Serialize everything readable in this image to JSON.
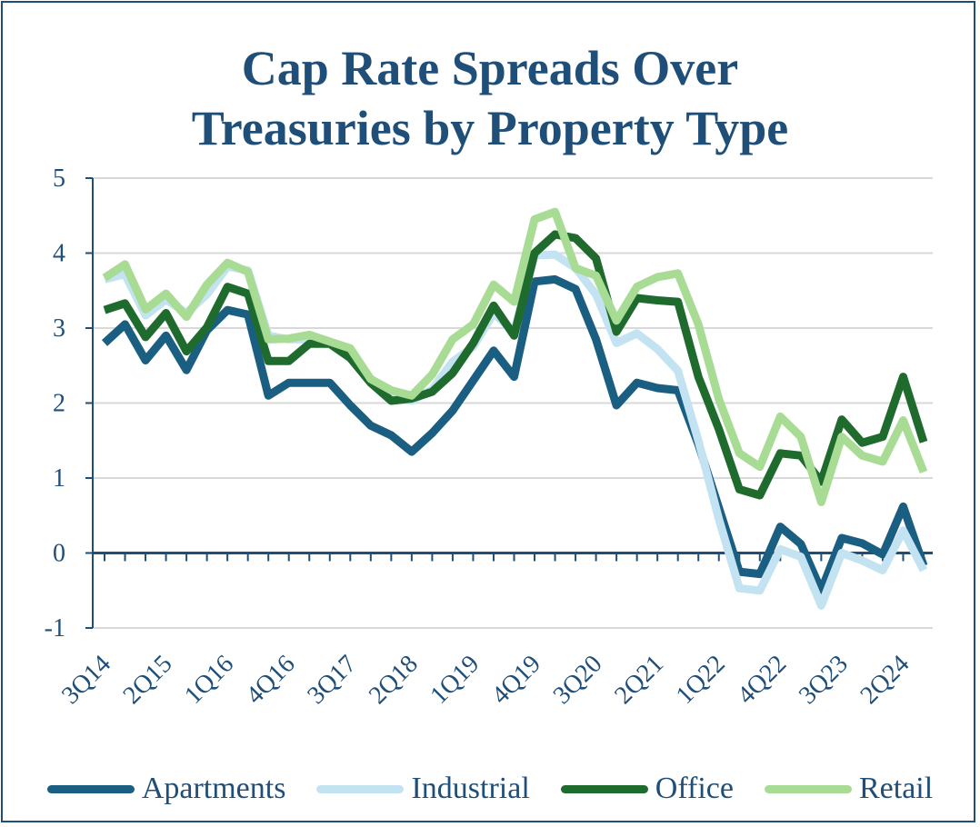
{
  "chart_data": {
    "type": "line",
    "title_lines": [
      "Cap Rate Spreads Over",
      "Treasuries by Property Type"
    ],
    "ylim": [
      -1,
      5
    ],
    "yticks": [
      "-1",
      "0",
      "1",
      "2",
      "3",
      "4",
      "5"
    ],
    "x": [
      "3Q14",
      "4Q14",
      "1Q15",
      "2Q15",
      "3Q15",
      "4Q15",
      "1Q16",
      "2Q16",
      "3Q16",
      "4Q16",
      "1Q17",
      "2Q17",
      "3Q17",
      "4Q17",
      "1Q18",
      "2Q18",
      "3Q18",
      "4Q18",
      "1Q19",
      "2Q19",
      "3Q19",
      "4Q19",
      "1Q20",
      "2Q20",
      "3Q20",
      "4Q20",
      "1Q21",
      "2Q21",
      "3Q21",
      "4Q21",
      "1Q22",
      "2Q22",
      "3Q22",
      "4Q22",
      "1Q23",
      "2Q23",
      "3Q23",
      "4Q23",
      "1Q24",
      "2Q24",
      "3Q24"
    ],
    "xtick_labels": [
      "3Q14",
      "2Q15",
      "1Q16",
      "4Q16",
      "3Q17",
      "2Q18",
      "1Q19",
      "4Q19",
      "3Q20",
      "2Q21",
      "1Q22",
      "4Q22",
      "3Q23",
      "2Q24"
    ],
    "series": [
      {
        "name": "Apartments",
        "color": "#1a5e82",
        "values": [
          2.8,
          3.05,
          2.57,
          2.9,
          2.44,
          2.97,
          3.24,
          3.18,
          2.1,
          2.27,
          2.27,
          2.27,
          1.97,
          1.7,
          1.57,
          1.35,
          1.6,
          1.9,
          2.3,
          2.7,
          2.35,
          3.62,
          3.65,
          3.52,
          2.85,
          1.97,
          2.27,
          2.2,
          2.17,
          1.45,
          0.6,
          -0.25,
          -0.28,
          0.35,
          0.12,
          -0.5,
          0.2,
          0.13,
          -0.02,
          0.62,
          -0.17
        ]
      },
      {
        "name": "Industrial",
        "color": "#c4e3f2",
        "values": [
          3.65,
          3.72,
          3.17,
          3.38,
          3.2,
          3.45,
          3.82,
          3.77,
          2.9,
          2.85,
          2.85,
          2.8,
          2.65,
          2.3,
          2.1,
          2.03,
          2.18,
          2.55,
          2.75,
          3.2,
          2.95,
          3.97,
          3.98,
          3.8,
          3.45,
          2.8,
          2.93,
          2.72,
          2.43,
          1.5,
          0.45,
          -0.47,
          -0.5,
          0.05,
          -0.05,
          -0.7,
          0.0,
          -0.1,
          -0.23,
          0.3,
          -0.23
        ]
      },
      {
        "name": "Office",
        "color": "#1f6b2d",
        "values": [
          3.24,
          3.33,
          2.88,
          3.2,
          2.69,
          3.01,
          3.55,
          3.46,
          2.56,
          2.56,
          2.79,
          2.79,
          2.6,
          2.27,
          2.03,
          2.06,
          2.15,
          2.4,
          2.8,
          3.3,
          2.9,
          4.0,
          4.25,
          4.2,
          3.93,
          2.95,
          3.4,
          3.37,
          3.35,
          2.35,
          1.65,
          0.85,
          0.77,
          1.33,
          1.3,
          0.95,
          1.78,
          1.47,
          1.55,
          2.35,
          1.48
        ]
      },
      {
        "name": "Retail",
        "color": "#a8dc95",
        "values": [
          3.67,
          3.85,
          3.25,
          3.46,
          3.15,
          3.58,
          3.87,
          3.75,
          2.85,
          2.86,
          2.91,
          2.82,
          2.73,
          2.32,
          2.17,
          2.1,
          2.38,
          2.85,
          3.05,
          3.58,
          3.35,
          4.45,
          4.55,
          3.8,
          3.7,
          3.1,
          3.55,
          3.68,
          3.73,
          3.05,
          2.05,
          1.33,
          1.15,
          1.82,
          1.55,
          0.68,
          1.55,
          1.3,
          1.22,
          1.77,
          1.08
        ]
      }
    ]
  }
}
